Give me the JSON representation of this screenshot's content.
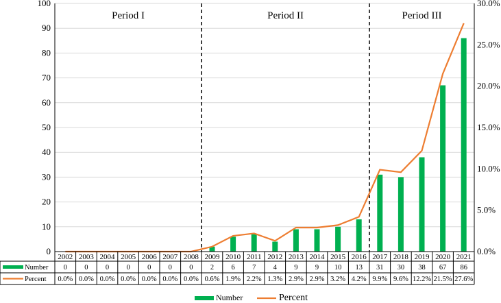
{
  "chart_data": {
    "type": "bar+line",
    "categories": [
      "2002",
      "2003",
      "2004",
      "2005",
      "2006",
      "2007",
      "2008",
      "2009",
      "2010",
      "2011",
      "2012",
      "2013",
      "2014",
      "2015",
      "2016",
      "2017",
      "2018",
      "2019",
      "2020",
      "2021"
    ],
    "series": [
      {
        "name": "Number",
        "type": "bar",
        "axis": "left",
        "color": "#00b050",
        "values": [
          0,
          0,
          0,
          0,
          0,
          0,
          0,
          2,
          6,
          7,
          4,
          9,
          9,
          10,
          13,
          31,
          30,
          38,
          67,
          86
        ]
      },
      {
        "name": "Percent",
        "type": "line",
        "axis": "right",
        "color": "#ed7d31",
        "values": [
          0.0,
          0.0,
          0.0,
          0.0,
          0.0,
          0.0,
          0.0,
          0.6,
          1.9,
          2.2,
          1.3,
          2.9,
          2.9,
          3.2,
          4.2,
          9.9,
          9.6,
          12.2,
          21.5,
          27.6
        ]
      }
    ],
    "table": {
      "number_row": [
        "0",
        "0",
        "0",
        "0",
        "0",
        "0",
        "0",
        "2",
        "6",
        "7",
        "4",
        "9",
        "9",
        "10",
        "13",
        "31",
        "30",
        "38",
        "67",
        "86"
      ],
      "percent_row": [
        "0.0%",
        "0.0%",
        "0.0%",
        "0.0%",
        "0.0%",
        "0.0%",
        "0.0%",
        "0.6%",
        "1.9%",
        "2.2%",
        "1.3%",
        "2.9%",
        "2.9%",
        "3.2%",
        "4.2%",
        "9.9%",
        "9.6%",
        "12.2%",
        "21.5%",
        "27.6%"
      ]
    },
    "y_left": {
      "min": 0,
      "max": 100,
      "ticks": [
        "0",
        "10",
        "20",
        "30",
        "40",
        "50",
        "60",
        "70",
        "80",
        "90",
        "100"
      ]
    },
    "y_right": {
      "min": 0,
      "max": 30,
      "ticks": [
        "0.0%",
        "5.0%",
        "10.0%",
        "15.0%",
        "20.0%",
        "25.0%",
        "30.0%"
      ]
    },
    "periods": [
      {
        "label": "Period I",
        "from": "2002",
        "to": "2008"
      },
      {
        "label": "Period II",
        "from": "2009",
        "to": "2016"
      },
      {
        "label": "Period III",
        "from": "2017",
        "to": "2021"
      }
    ],
    "legend": {
      "position": "bottom",
      "items": [
        "Number",
        "Percent"
      ]
    },
    "grid": "horizontal"
  }
}
